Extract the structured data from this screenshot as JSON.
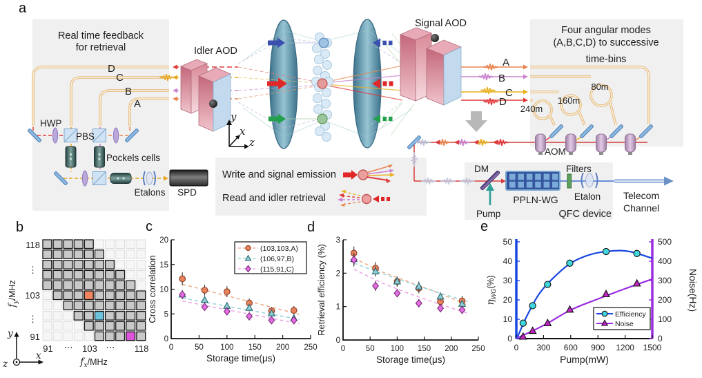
{
  "panel_labels": {
    "a": "a",
    "b": "b",
    "c": "c",
    "d": "d",
    "e": "e"
  },
  "panel_a": {
    "feedback_title1": "Real time feedback",
    "feedback_title2": "for retrieval",
    "idler_aod": "Idler AOD",
    "signal_aod": "Signal AOD",
    "modes_left": [
      "D",
      "C",
      "B",
      "A"
    ],
    "modes_right": [
      "A",
      "B",
      "C",
      "D"
    ],
    "hwp": "HWP",
    "pbs": "PBS",
    "pockels": "Pockels cells",
    "etalons": "Etalons",
    "spd": "SPD",
    "legend_write": "Write and signal emission",
    "legend_read": "Read and idler retrieval",
    "modes_title1": "Four angular modes",
    "modes_title2": "(A,B,C,D) to successive",
    "modes_title3": "time-bins",
    "fiber_240": "240m",
    "fiber_160": "160m",
    "fiber_80": "80m",
    "aom": "AOM",
    "dm": "DM",
    "pump": "Pump",
    "ppln": "PPLN-WG",
    "filters": "Filters",
    "etalon": "Etalon",
    "qfc": "QFC device",
    "telecom1": "Telecom",
    "telecom2": "Channel",
    "ax_x": "x",
    "ax_y": "y",
    "ax_z": "z"
  },
  "panel_b": {
    "yticks": [
      "118",
      "⋮",
      "103",
      "⋮",
      "91"
    ],
    "xticks": [
      "91",
      "⋯",
      "103",
      "⋯",
      "118"
    ],
    "ylabel": {
      "pre": "f",
      "sub": "y",
      "post": "/MHz"
    },
    "xlabel": {
      "pre": "f",
      "sub": "x",
      "post": "/MHz"
    },
    "ax_x": "x",
    "ax_y": "y",
    "ax_z": "z",
    "grid_rows": [
      "1111100000",
      "1111110000",
      "1111111000",
      "1111111100",
      "1111111110",
      "0111A11111",
      "0011111111",
      "00011B1111",
      "0000111111",
      "00000111C1"
    ],
    "cell_colors": {
      "0": "#f6f6f6",
      "1": "#c9c9c9",
      "A": "#f0855f",
      "B": "#6fc4dd",
      "C": "#dd55dd"
    }
  },
  "chart_data": [
    {
      "panel": "c",
      "type": "scatter",
      "xlabel": "Storage time(μs)",
      "ylabel": "Cross correlation",
      "xlim": [
        0,
        250
      ],
      "ylim": [
        0,
        20
      ],
      "xticks": [
        0,
        50,
        100,
        150,
        200,
        250
      ],
      "yticks": [
        0,
        5,
        10,
        15,
        20
      ],
      "x": [
        20,
        60,
        100,
        140,
        180,
        220
      ],
      "series": [
        {
          "name": "(103,103,A)",
          "marker": "circle",
          "marker_color": "#e8835c",
          "edge_color": "#8a3a23",
          "line_color": "#eda57f",
          "values": [
            12.1,
            9.8,
            9.5,
            7.2,
            5.6,
            5.7
          ],
          "errors": [
            1.3,
            1.1,
            1.1,
            0.9,
            0.8,
            0.9
          ],
          "fit": [
            [
              20,
              11.0
            ],
            [
              230,
              4.9
            ]
          ]
        },
        {
          "name": "(106,97,B)",
          "marker": "triangle",
          "marker_color": "#8fcdd4",
          "edge_color": "#2a6a74",
          "line_color": "#8fd0d8",
          "values": [
            8.9,
            7.8,
            6.6,
            6.2,
            5.1,
            4.1
          ],
          "errors": [
            0.9,
            0.8,
            0.7,
            0.7,
            0.6,
            0.6
          ],
          "fit": [
            [
              20,
              8.2
            ],
            [
              230,
              3.9
            ]
          ]
        },
        {
          "name": "(115,91,C)",
          "marker": "diamond",
          "marker_color": "#e26ee2",
          "edge_color": "#7a2a7a",
          "line_color": "#eb9fe8",
          "values": [
            8.9,
            6.4,
            5.5,
            4.5,
            3.7,
            3.7
          ],
          "errors": [
            0.9,
            0.7,
            0.6,
            0.6,
            0.5,
            0.5
          ],
          "fit": [
            [
              20,
              7.6
            ],
            [
              230,
              3.0
            ]
          ]
        }
      ],
      "legend": true
    },
    {
      "panel": "d",
      "type": "scatter",
      "xlabel": "Storage time(μs)",
      "ylabel": "Retrieval efficiency (%)",
      "xlim": [
        0,
        250
      ],
      "ylim": [
        0,
        3
      ],
      "xticks": [
        0,
        50,
        100,
        150,
        200,
        250
      ],
      "yticks": [
        0,
        1,
        2,
        3
      ],
      "x": [
        20,
        60,
        100,
        140,
        180,
        220
      ],
      "series": [
        {
          "name": "(103,103,A)",
          "marker": "circle",
          "marker_color": "#e8835c",
          "edge_color": "#8a3a23",
          "line_color": "#eda57f",
          "values": [
            2.6,
            2.15,
            1.75,
            1.55,
            1.15,
            1.17
          ],
          "errors": [
            0.2,
            0.18,
            0.15,
            0.15,
            0.15,
            0.15
          ],
          "fit": [
            [
              20,
              2.45
            ],
            [
              70,
              2.05
            ],
            [
              120,
              1.75
            ],
            [
              170,
              1.45
            ],
            [
              230,
              1.05
            ]
          ]
        },
        {
          "name": "(106,97,B)",
          "marker": "triangle",
          "marker_color": "#8fcdd4",
          "edge_color": "#2a6a74",
          "line_color": "#8fd0d8",
          "values": [
            2.42,
            2.05,
            1.75,
            1.6,
            1.3,
            1.08
          ],
          "errors": [
            0.18,
            0.15,
            0.15,
            0.15,
            0.12,
            0.12
          ],
          "fit": [
            [
              20,
              2.3
            ],
            [
              70,
              2.0
            ],
            [
              120,
              1.72
            ],
            [
              170,
              1.45
            ],
            [
              230,
              1.15
            ]
          ]
        },
        {
          "name": "(115,91,C)",
          "marker": "diamond",
          "marker_color": "#e26ee2",
          "edge_color": "#7a2a7a",
          "line_color": "#eb9fe8",
          "values": [
            2.4,
            1.62,
            1.4,
            1.1,
            0.95,
            0.9
          ],
          "errors": [
            0.2,
            0.15,
            0.12,
            0.12,
            0.1,
            0.1
          ],
          "fit": [
            [
              20,
              2.12
            ],
            [
              70,
              1.72
            ],
            [
              120,
              1.4
            ],
            [
              170,
              1.12
            ],
            [
              230,
              0.8
            ]
          ]
        }
      ],
      "legend": false
    },
    {
      "panel": "e",
      "type": "dual",
      "xlabel": "Pump(mW)",
      "xlim": [
        0,
        1500
      ],
      "xticks": [
        0,
        300,
        600,
        900,
        1200,
        1500
      ],
      "left": {
        "label_parts": [
          {
            "t": "η",
            "italic": true
          },
          {
            "t": "WG",
            "sub": true
          },
          {
            "t": "(%)",
            "unit": true
          }
        ],
        "lim": [
          0,
          50
        ],
        "ticks": [
          0,
          10,
          20,
          30,
          40,
          50
        ],
        "axis_color": "#1747e0",
        "tick_color": "#2448e8"
      },
      "right": {
        "label": "Noise(Hz)",
        "lim": [
          0,
          500
        ],
        "ticks": [
          0,
          100,
          200,
          300,
          400,
          500
        ],
        "axis_color": "#9a2be0",
        "tick_color": "#b82ae0",
        "label_color": "#111"
      },
      "series": [
        {
          "name": "Efficiency",
          "axis": "left",
          "marker": "circle",
          "marker_color": "#3fd6de",
          "edge_color": "#111",
          "line_color": "#1747e0",
          "x": [
            75,
            180,
            345,
            590,
            990,
            1330
          ],
          "values": [
            8,
            17,
            28,
            39,
            45,
            44
          ],
          "curve": [
            [
              5,
              0
            ],
            [
              120,
              12
            ],
            [
              250,
              23
            ],
            [
              400,
              31
            ],
            [
              600,
              39
            ],
            [
              820,
              43.5
            ],
            [
              1050,
              45.3
            ],
            [
              1250,
              45
            ],
            [
              1500,
              41.5
            ]
          ]
        },
        {
          "name": "Noise",
          "axis": "right",
          "marker": "triangle",
          "marker_color": "#c224c2",
          "edge_color": "#111",
          "line_color": "#9a2be0",
          "x": [
            75,
            180,
            345,
            590,
            990,
            1330
          ],
          "values": [
            10,
            40,
            80,
            150,
            230,
            285
          ],
          "curve": [
            [
              5,
              2
            ],
            [
              300,
              68
            ],
            [
              600,
              148
            ],
            [
              900,
              205
            ],
            [
              1200,
              258
            ],
            [
              1500,
              308
            ]
          ]
        }
      ],
      "legend": true
    }
  ]
}
